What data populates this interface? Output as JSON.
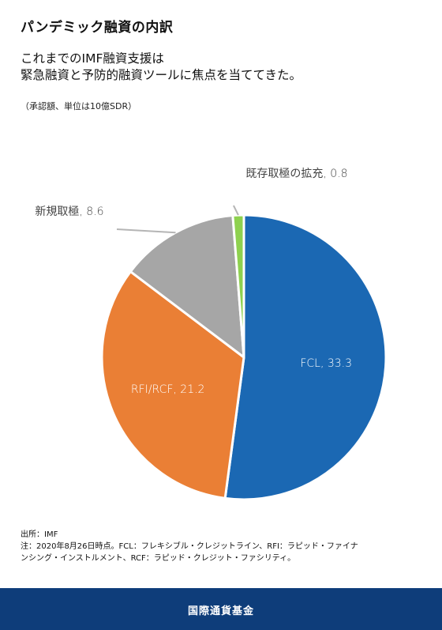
{
  "header": {
    "title": "パンデミック融資の内訳",
    "subtitle_line1": "これまでのIMF融資支援は",
    "subtitle_line2": "緊急融資と予防的融資ツールに焦点を当ててきた。",
    "unit_note": "（承認額、単位は10億SDR）"
  },
  "chart_data": {
    "type": "pie",
    "title": "",
    "unit": "10億SDR",
    "start_angle_deg": 0,
    "direction": "clockwise",
    "slices": [
      {
        "name": "FCL",
        "value": 33.3,
        "label": "FCL, 33.3",
        "color": "#1b68b3",
        "label_position": "inside"
      },
      {
        "name": "RFI/RCF",
        "value": 21.2,
        "label": "RFI/RCF, 21.2",
        "color": "#ea7f35",
        "label_position": "inside"
      },
      {
        "name": "新規取極",
        "value": 8.6,
        "label": "新規取極, 8.6",
        "color": "#a6a6a6",
        "label_position": "outside-left"
      },
      {
        "name": "既存取極の拡充",
        "value": 0.8,
        "label": "既存取極の拡充, 0.8",
        "color": "#8ed14f",
        "label_position": "outside-top"
      }
    ]
  },
  "notes": {
    "source": "出所：IMF",
    "note_line1": "注：2020年8月26日時点。FCL：フレキシブル・クレジットライン、RFI：ラピッド・ファイナ",
    "note_line2": "ンシング・インストルメント、RCF：ラピッド・クレジット・ファシリティ。"
  },
  "footer": {
    "label": "国際通貨基金",
    "background": "#0e3d7a"
  }
}
